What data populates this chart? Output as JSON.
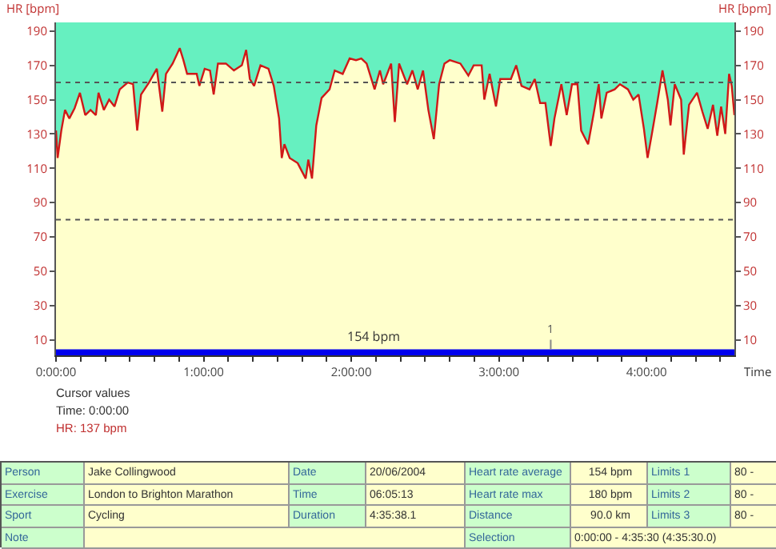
{
  "chart_data": {
    "type": "area",
    "ylabel": "HR [bpm]",
    "y2label": "HR [bpm]",
    "xlabel": "Time",
    "x": [
      0,
      0.011,
      0.036,
      0.061,
      0.09,
      0.126,
      0.162,
      0.198,
      0.234,
      0.27,
      0.288,
      0.324,
      0.36,
      0.396,
      0.432,
      0.486,
      0.522,
      0.55,
      0.576,
      0.63,
      0.683,
      0.72,
      0.745,
      0.79,
      0.838,
      0.863,
      0.888,
      0.953,
      0.971,
      1.007,
      1.043,
      1.068,
      1.097,
      1.151,
      1.205,
      1.259,
      1.288,
      1.313,
      1.342,
      1.385,
      1.439,
      1.475,
      1.511,
      1.529,
      1.547,
      1.583,
      1.637,
      1.691,
      1.709,
      1.734,
      1.763,
      1.799,
      1.853,
      1.888,
      1.942,
      1.989,
      2.032,
      2.068,
      2.104,
      2.158,
      2.194,
      2.216,
      2.27,
      2.295,
      2.324,
      2.378,
      2.414,
      2.45,
      2.486,
      2.522,
      2.559,
      2.595,
      2.631,
      2.667,
      2.739,
      2.793,
      2.829,
      2.883,
      2.901,
      2.937,
      2.98,
      3.009,
      3.081,
      3.117,
      3.153,
      3.207,
      3.243,
      3.279,
      3.315,
      3.351,
      3.376,
      3.423,
      3.459,
      3.495,
      3.532,
      3.557,
      3.604,
      3.64,
      3.676,
      3.694,
      3.73,
      3.784,
      3.82,
      3.874,
      3.91,
      3.946,
      3.982,
      4.007,
      4.036,
      4.072,
      4.108,
      4.144,
      4.162,
      4.191,
      4.234,
      4.252,
      4.288,
      4.342,
      4.378,
      4.414,
      4.45,
      4.479,
      4.505,
      4.533,
      4.559,
      4.577,
      4.595
    ],
    "series": [
      {
        "color": "#d01818",
        "values": [
          132,
          116,
          132,
          144,
          139,
          145,
          154,
          141,
          144,
          141,
          154,
          144,
          150,
          146,
          156,
          160,
          159,
          132,
          153,
          160,
          168,
          143,
          165,
          171,
          180,
          173,
          165,
          165,
          158,
          168,
          167,
          153,
          171,
          171,
          167,
          170,
          179,
          162,
          158,
          170,
          168,
          158,
          139,
          116,
          124,
          116,
          113,
          104,
          115,
          104,
          135,
          151,
          156,
          167,
          165,
          174,
          173,
          174,
          171,
          156,
          167,
          159,
          171,
          137,
          171,
          159,
          167,
          156,
          167,
          144,
          127,
          159,
          171,
          173,
          171,
          164,
          170,
          170,
          150,
          165,
          146,
          162,
          162,
          170,
          158,
          156,
          162,
          148,
          148,
          123,
          139,
          159,
          141,
          159,
          159,
          132,
          124,
          141,
          159,
          139,
          154,
          156,
          159,
          156,
          150,
          153,
          133,
          116,
          130,
          148,
          167,
          150,
          135,
          159,
          150,
          118,
          147,
          154,
          143,
          133,
          147,
          129,
          146,
          130,
          165,
          158,
          141
        ]
      }
    ],
    "xlim": [
      0,
      4.595
    ],
    "xticks": [
      {
        "value": 0,
        "label": "0:00:00"
      },
      {
        "value": 0.1667,
        "label": null
      },
      {
        "value": 0.3333,
        "label": null
      },
      {
        "value": 0.5,
        "label": null
      },
      {
        "value": 0.6667,
        "label": null
      },
      {
        "value": 0.8333,
        "label": null
      },
      {
        "value": 1,
        "label": "1:00:00"
      },
      {
        "value": 1.1667,
        "label": null
      },
      {
        "value": 1.3333,
        "label": null
      },
      {
        "value": 1.5,
        "label": null
      },
      {
        "value": 1.6667,
        "label": null
      },
      {
        "value": 1.8333,
        "label": null
      },
      {
        "value": 2,
        "label": "2:00:00"
      },
      {
        "value": 2.1667,
        "label": null
      },
      {
        "value": 2.3333,
        "label": null
      },
      {
        "value": 2.5,
        "label": null
      },
      {
        "value": 2.6667,
        "label": null
      },
      {
        "value": 2.8333,
        "label": null
      },
      {
        "value": 3,
        "label": "3:00:00"
      },
      {
        "value": 3.1667,
        "label": null
      },
      {
        "value": 3.3333,
        "label": null
      },
      {
        "value": 3.5,
        "label": null
      },
      {
        "value": 3.6667,
        "label": null
      },
      {
        "value": 3.8333,
        "label": null
      },
      {
        "value": 4,
        "label": "4:00:00"
      },
      {
        "value": 4.1667,
        "label": null
      },
      {
        "value": 4.3333,
        "label": null
      },
      {
        "value": 4.5,
        "label": null
      }
    ],
    "ylim": [
      1,
      195
    ],
    "yticks": [
      10,
      30,
      50,
      70,
      90,
      110,
      130,
      150,
      170,
      190
    ],
    "y2lim": [
      1,
      195
    ],
    "y2ticks": [
      10,
      30,
      50,
      70,
      90,
      110,
      130,
      150,
      170,
      190
    ],
    "grid": false,
    "marker": "none",
    "line_style": "solid",
    "ref_lines": [
      {
        "axis": "y",
        "value": 160,
        "line_style": "dotted",
        "color": "#555555"
      },
      {
        "axis": "y",
        "value": 80,
        "line_style": "dotted",
        "color": "#555555"
      }
    ],
    "bands": [
      {
        "axis": "y",
        "from": 1,
        "to": 195,
        "color": "#66f0c0"
      },
      {
        "axis": "y",
        "from": 1,
        "to": 4.5,
        "label": "154 bpm",
        "color": "#0000ee"
      }
    ],
    "annotations": [
      "Cursor values",
      "Time: 0:00:00",
      "HR: 137 bpm",
      "Person",
      "Jake Collingwood",
      "Date",
      "20/06/2004",
      "Heart rate average",
      "154 bpm",
      "Limits 1",
      "80 -",
      "Exercise",
      "London to Brighton Marathon",
      "Time",
      "06:05:13",
      "Heart rate max",
      "180 bpm",
      "Limits 2",
      "80 -",
      "Sport",
      "Cycling",
      "Duration",
      "4:35:38.1",
      "Distance",
      "90.0 km",
      "Limits 3",
      "80 -",
      "Note",
      "Selection",
      "0:00:00 - 4:35:30 (4:35:30.0)",
      {
        "text": "1",
        "x": 3.351,
        "y": 4.5
      }
    ]
  }
}
